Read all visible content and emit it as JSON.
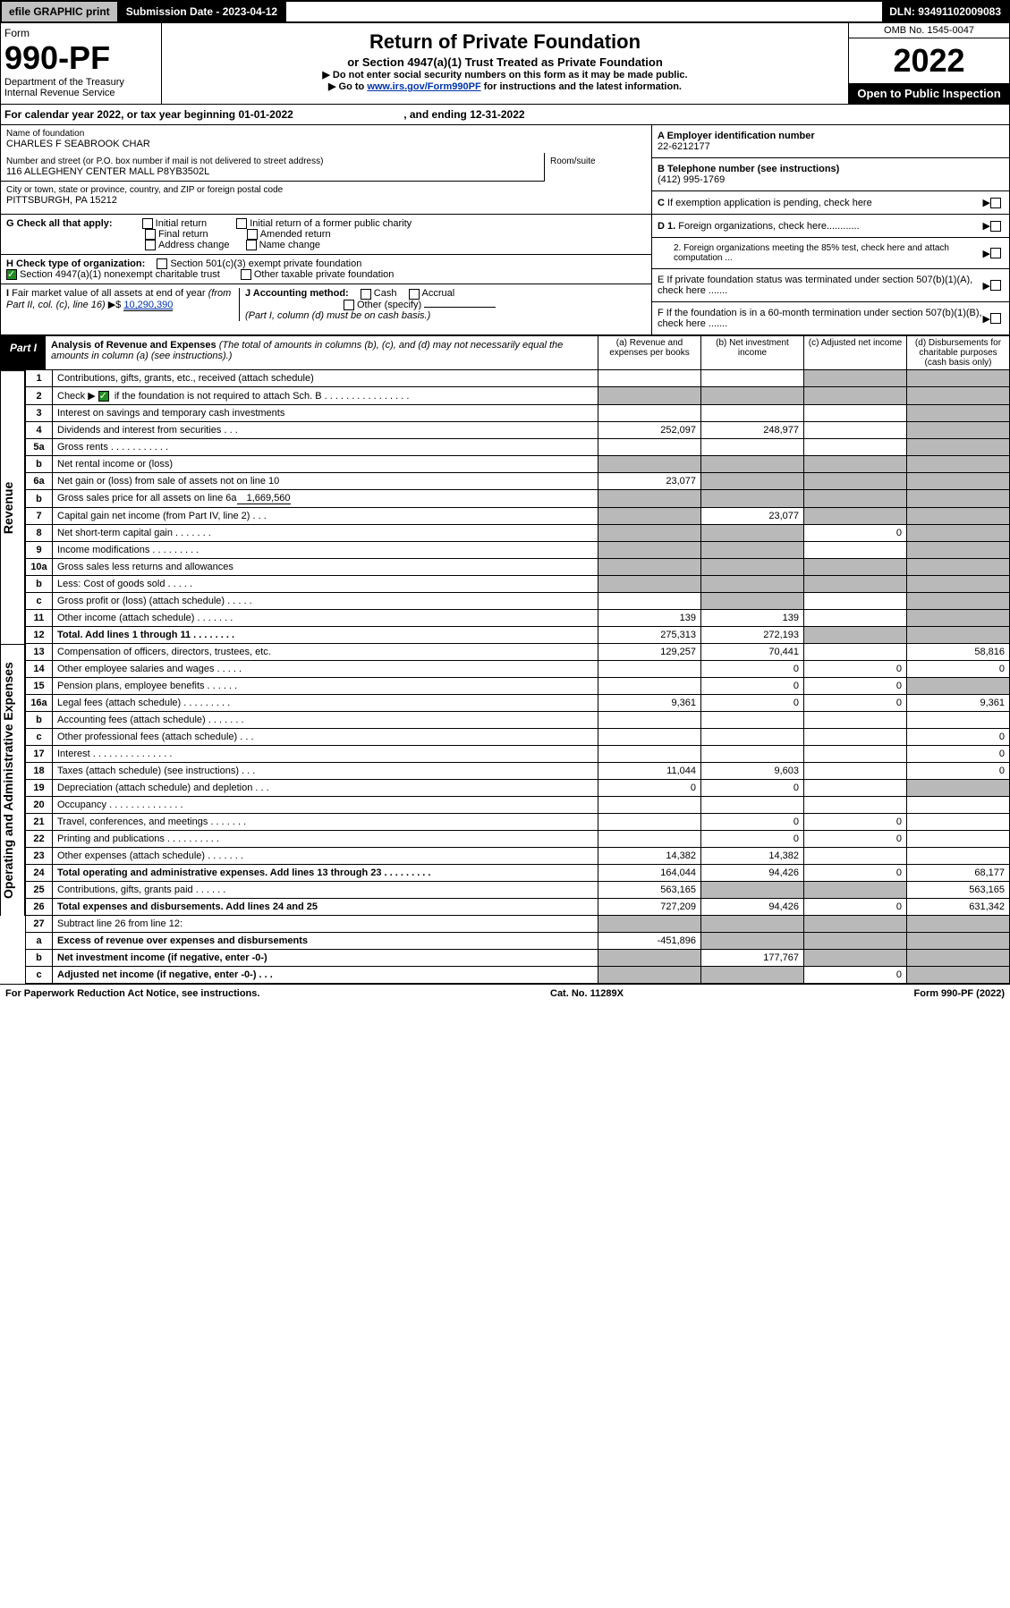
{
  "topbar": {
    "efile": "efile GRAPHIC print",
    "submission": "Submission Date - 2023-04-12",
    "dln": "DLN: 93491102009083"
  },
  "header": {
    "form": "Form",
    "num": "990-PF",
    "dept": "Department of the Treasury",
    "irs": "Internal Revenue Service",
    "title": "Return of Private Foundation",
    "subtitle": "or Section 4947(a)(1) Trust Treated as Private Foundation",
    "note1": "▶ Do not enter social security numbers on this form as it may be made public.",
    "note2_pre": "▶ Go to ",
    "note2_link": "www.irs.gov/Form990PF",
    "note2_post": " for instructions and the latest information.",
    "omb": "OMB No. 1545-0047",
    "year": "2022",
    "open": "Open to Public Inspection"
  },
  "calyear": {
    "pre": "For calendar year 2022, or tax year beginning ",
    "begin": "01-01-2022",
    "mid": " , and ending ",
    "end": "12-31-2022"
  },
  "foundation": {
    "name_label": "Name of foundation",
    "name": "CHARLES F SEABROOK CHAR",
    "addr_label": "Number and street (or P.O. box number if mail is not delivered to street address)",
    "addr": "116 ALLEGHENY CENTER MALL P8YB3502L",
    "room_label": "Room/suite",
    "city_label": "City or town, state or province, country, and ZIP or foreign postal code",
    "city": "PITTSBURGH, PA  15212"
  },
  "right": {
    "A": "A Employer identification number",
    "A_val": "22-6212177",
    "B": "B Telephone number (see instructions)",
    "B_val": "(412) 995-1769",
    "C": "C If exemption application is pending, check here",
    "D1": "D 1. Foreign organizations, check here............",
    "D2": "2. Foreign organizations meeting the 85% test, check here and attach computation ...",
    "E": "E  If private foundation status was terminated under section 507(b)(1)(A), check here .......",
    "F": "F  If the foundation is in a 60-month termination under section 507(b)(1)(B), check here .......",
    "arrow": "▶"
  },
  "G": {
    "label": "G Check all that apply:",
    "o1": "Initial return",
    "o2": "Final return",
    "o3": "Address change",
    "o4": "Initial return of a former public charity",
    "o5": "Amended return",
    "o6": "Name change"
  },
  "H": {
    "label": "H Check type of organization:",
    "o1": "Section 501(c)(3) exempt private foundation",
    "o2": "Section 4947(a)(1) nonexempt charitable trust",
    "o3": "Other taxable private foundation"
  },
  "I": {
    "label": "I Fair market value of all assets at end of year (from Part II, col. (c), line 16)",
    "arrow": "▶$",
    "val": "10,290,390"
  },
  "J": {
    "label": "J Accounting method:",
    "o1": "Cash",
    "o2": "Accrual",
    "o3": "Other (specify)",
    "note": "(Part I, column (d) must be on cash basis.)"
  },
  "part1": {
    "label": "Part I",
    "title": "Analysis of Revenue and Expenses",
    "sub": " (The total of amounts in columns (b), (c), and (d) may not necessarily equal the amounts in column (a) (see instructions).)",
    "cols": {
      "a": "(a)   Revenue and expenses per books",
      "b": "(b)   Net investment income",
      "c": "(c)   Adjusted net income",
      "d": "(d)  Disbursements for charitable purposes (cash basis only)"
    }
  },
  "side": {
    "revenue": "Revenue",
    "expenses": "Operating and Administrative Expenses"
  },
  "rows": {
    "r1": {
      "n": "1",
      "t": "Contributions, gifts, grants, etc., received (attach schedule)"
    },
    "r2": {
      "n": "2",
      "t_pre": "Check ▶ ",
      "t_post": " if the foundation is not required to attach Sch. B   .   .   .   .   .   .   .   .   .   .   .   .   .   .   .   ."
    },
    "r3": {
      "n": "3",
      "t": "Interest on savings and temporary cash investments"
    },
    "r4": {
      "n": "4",
      "t": "Dividends and interest from securities    .    .    .",
      "a": "252,097",
      "b": "248,977"
    },
    "r5a": {
      "n": "5a",
      "t": "Gross rents   .   .   .   .   .   .   .   .   .   .   ."
    },
    "r5b": {
      "n": "b",
      "t": "Net rental income or (loss)"
    },
    "r6a": {
      "n": "6a",
      "t": "Net gain or (loss) from sale of assets not on line 10",
      "a": "23,077"
    },
    "r6b": {
      "n": "b",
      "t_pre": "Gross sales price for all assets on line 6a",
      "inline": "1,669,560"
    },
    "r7": {
      "n": "7",
      "t": "Capital gain net income (from Part IV, line 2)   .   .   .",
      "b": "23,077"
    },
    "r8": {
      "n": "8",
      "t": "Net short-term capital gain   .   .   .   .   .   .   .",
      "c": "0"
    },
    "r9": {
      "n": "9",
      "t": "Income modifications  .   .   .   .   .   .   .   .   ."
    },
    "r10a": {
      "n": "10a",
      "t": "Gross sales less returns and allowances"
    },
    "r10b": {
      "n": "b",
      "t": "Less: Cost of goods sold     .    .    .    .    ."
    },
    "r10c": {
      "n": "c",
      "t": "Gross profit or (loss) (attach schedule)    .    .    .    .    ."
    },
    "r11": {
      "n": "11",
      "t": "Other income (attach schedule)    .    .    .    .    .    .    .",
      "a": "139",
      "b": "139"
    },
    "r12": {
      "n": "12",
      "t": "Total. Add lines 1 through 11   .   .   .   .   .   .   .   .",
      "a": "275,313",
      "b": "272,193"
    },
    "r13": {
      "n": "13",
      "t": "Compensation of officers, directors, trustees, etc.",
      "a": "129,257",
      "b": "70,441",
      "d": "58,816"
    },
    "r14": {
      "n": "14",
      "t": "Other employee salaries and wages    .    .    .    .    .",
      "b": "0",
      "c": "0",
      "d": "0"
    },
    "r15": {
      "n": "15",
      "t": "Pension plans, employee benefits   .   .   .   .   .   .",
      "b": "0",
      "c": "0"
    },
    "r16a": {
      "n": "16a",
      "t": "Legal fees (attach schedule)  .  .  .  .  .  .  .  .  .",
      "a": "9,361",
      "b": "0",
      "c": "0",
      "d": "9,361"
    },
    "r16b": {
      "n": "b",
      "t": "Accounting fees (attach schedule)  .  .  .  .  .  .  ."
    },
    "r16c": {
      "n": "c",
      "t": "Other professional fees (attach schedule)    .    .    .",
      "d": "0"
    },
    "r17": {
      "n": "17",
      "t": "Interest  .  .  .  .  .  .  .  .  .  .  .  .  .  .  .",
      "d": "0"
    },
    "r18": {
      "n": "18",
      "t": "Taxes (attach schedule) (see instructions)    .    .    .",
      "a": "11,044",
      "b": "9,603",
      "d": "0"
    },
    "r19": {
      "n": "19",
      "t": "Depreciation (attach schedule) and depletion    .    .    .",
      "a": "0",
      "b": "0"
    },
    "r20": {
      "n": "20",
      "t": "Occupancy  .  .  .  .  .  .  .  .  .  .  .  .  .  ."
    },
    "r21": {
      "n": "21",
      "t": "Travel, conferences, and meetings  .  .  .  .  .  .  .",
      "b": "0",
      "c": "0"
    },
    "r22": {
      "n": "22",
      "t": "Printing and publications  .  .  .  .  .  .  .  .  .  .",
      "b": "0",
      "c": "0"
    },
    "r23": {
      "n": "23",
      "t": "Other expenses (attach schedule)  .  .  .  .  .  .  .",
      "a": "14,382",
      "b": "14,382"
    },
    "r24": {
      "n": "24",
      "t": "Total operating and administrative expenses. Add lines 13 through 23   .   .   .   .   .   .   .   .   .",
      "a": "164,044",
      "b": "94,426",
      "c": "0",
      "d": "68,177"
    },
    "r25": {
      "n": "25",
      "t": "Contributions, gifts, grants paid     .    .    .    .    .    .",
      "a": "563,165",
      "d": "563,165"
    },
    "r26": {
      "n": "26",
      "t": "Total expenses and disbursements. Add lines 24 and 25",
      "a": "727,209",
      "b": "94,426",
      "c": "0",
      "d": "631,342"
    },
    "r27": {
      "n": "27",
      "t": "Subtract line 26 from line 12:"
    },
    "r27a": {
      "n": "a",
      "t": "Excess of revenue over expenses and disbursements",
      "a": "-451,896"
    },
    "r27b": {
      "n": "b",
      "t": "Net investment income (if negative, enter -0-)",
      "b": "177,767"
    },
    "r27c": {
      "n": "c",
      "t": "Adjusted net income (if negative, enter -0-)    .    .    .",
      "c": "0"
    }
  },
  "footer": {
    "left": "For Paperwork Reduction Act Notice, see instructions.",
    "mid": "Cat. No. 11289X",
    "right": "Form 990-PF (2022)"
  }
}
